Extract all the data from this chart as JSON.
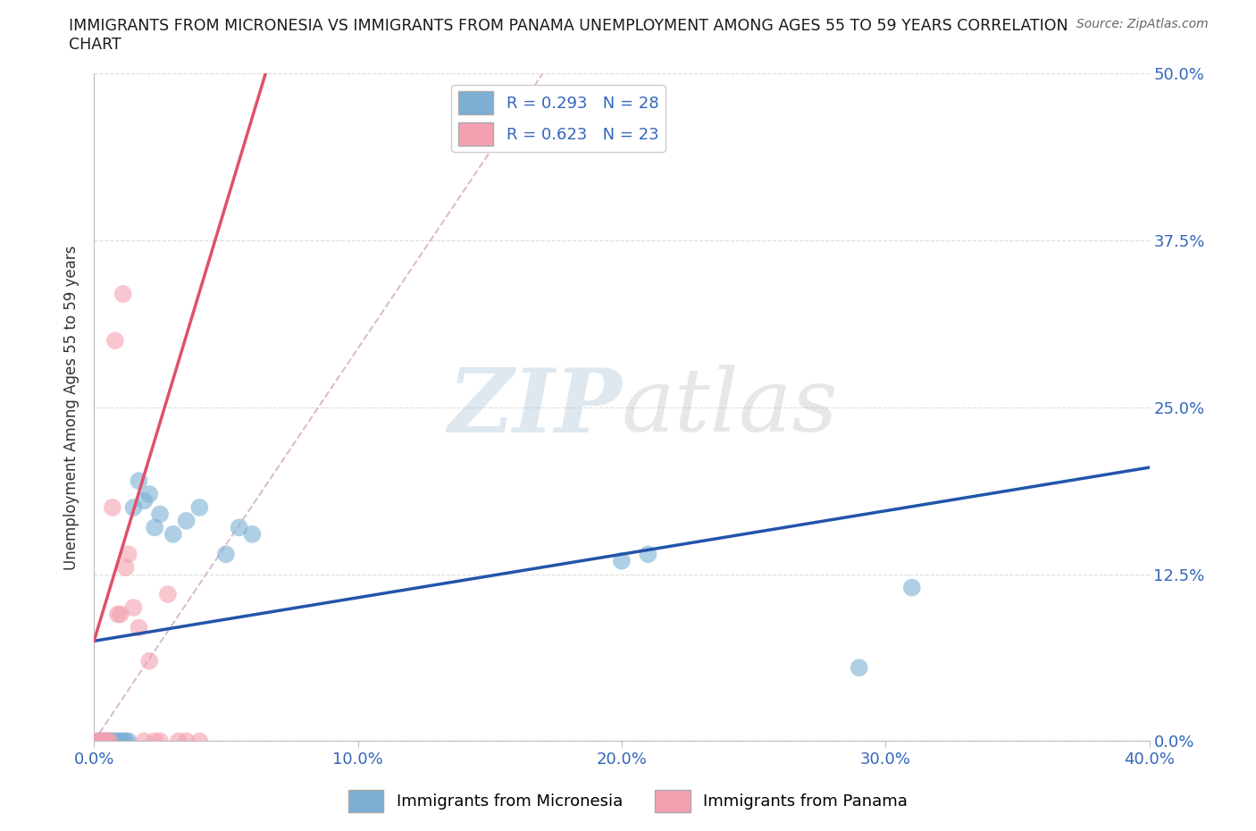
{
  "title_line1": "IMMIGRANTS FROM MICRONESIA VS IMMIGRANTS FROM PANAMA UNEMPLOYMENT AMONG AGES 55 TO 59 YEARS CORRELATION",
  "title_line2": "CHART",
  "source": "Source: ZipAtlas.com",
  "ylabel": "Unemployment Among Ages 55 to 59 years",
  "xlim": [
    0.0,
    0.4
  ],
  "ylim": [
    0.0,
    0.5
  ],
  "xlabel_vals": [
    0.0,
    0.1,
    0.2,
    0.3,
    0.4
  ],
  "xlabel_ticks": [
    "0.0%",
    "10.0%",
    "20.0%",
    "30.0%",
    "40.0%"
  ],
  "ylabel_vals": [
    0.0,
    0.125,
    0.25,
    0.375,
    0.5
  ],
  "ylabel_ticks": [
    "0.0%",
    "12.5%",
    "25.0%",
    "37.5%",
    "50.0%"
  ],
  "R_micronesia": 0.293,
  "N_micronesia": 28,
  "R_panama": 0.623,
  "N_panama": 23,
  "color_micronesia": "#7BAFD4",
  "color_panama": "#F4A0B0",
  "trendline_micronesia_color": "#2255AA",
  "trendline_panama_color": "#E0506A",
  "trendline_dashed_color": "#DDBBCC",
  "micronesia_x": [
    0.002,
    0.003,
    0.004,
    0.005,
    0.006,
    0.007,
    0.008,
    0.009,
    0.01,
    0.011,
    0.012,
    0.013,
    0.015,
    0.017,
    0.019,
    0.021,
    0.023,
    0.025,
    0.03,
    0.035,
    0.04,
    0.05,
    0.055,
    0.06,
    0.2,
    0.21,
    0.29,
    0.31
  ],
  "micronesia_y": [
    0.0,
    0.0,
    0.0,
    0.0,
    0.0,
    0.0,
    0.0,
    0.0,
    0.0,
    0.0,
    0.0,
    0.0,
    0.175,
    0.195,
    0.18,
    0.185,
    0.16,
    0.17,
    0.155,
    0.165,
    0.175,
    0.14,
    0.16,
    0.155,
    0.135,
    0.14,
    0.055,
    0.115
  ],
  "panama_x": [
    0.001,
    0.002,
    0.003,
    0.004,
    0.005,
    0.006,
    0.007,
    0.008,
    0.009,
    0.01,
    0.011,
    0.012,
    0.013,
    0.015,
    0.017,
    0.019,
    0.021,
    0.023,
    0.025,
    0.028,
    0.032,
    0.035,
    0.04
  ],
  "panama_y": [
    0.0,
    0.0,
    0.0,
    0.0,
    0.0,
    0.0,
    0.175,
    0.3,
    0.095,
    0.095,
    0.335,
    0.13,
    0.14,
    0.1,
    0.085,
    0.0,
    0.06,
    0.0,
    0.0,
    0.11,
    0.0,
    0.0,
    0.0
  ],
  "watermark_zip": "ZIP",
  "watermark_atlas": "atlas",
  "legend_micronesia": "Immigrants from Micronesia",
  "legend_panama": "Immigrants from Panama"
}
